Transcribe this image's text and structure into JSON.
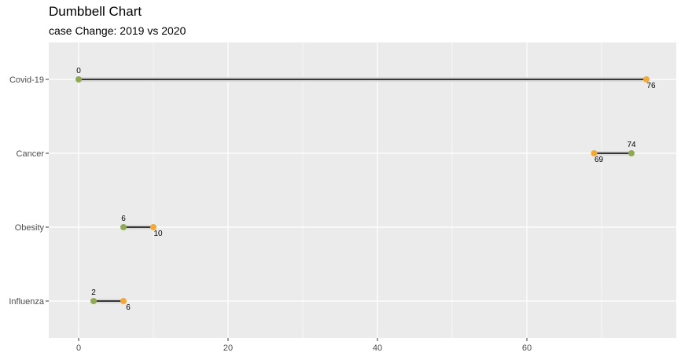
{
  "chart_data": {
    "type": "dumbbell",
    "title": "Dumbbell Chart",
    "subtitle": "case Change: 2019 vs 2020",
    "xlabel": "",
    "ylabel": "",
    "xlim": [
      -4,
      80
    ],
    "x_ticks": [
      0,
      20,
      40,
      60
    ],
    "grid": true,
    "legend": "none",
    "categories": [
      "Covid-19",
      "Cancer",
      "Obesity",
      "Influenza"
    ],
    "series": [
      {
        "values": [
          0,
          74,
          6,
          2
        ]
      },
      {
        "values": [
          76,
          69,
          10,
          6
        ]
      }
    ],
    "colors": {
      "start_point": "#90a955",
      "end_point": "#f2a93b",
      "panel_background": "#ebebeb",
      "grid_line": "#ffffff",
      "segment": "#000000"
    }
  }
}
